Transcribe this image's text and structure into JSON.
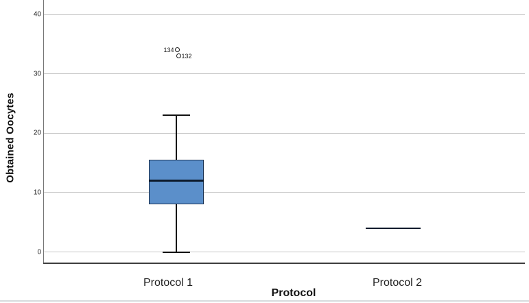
{
  "chart_data": {
    "type": "boxplot",
    "title": "",
    "xlabel": "Protocol",
    "ylabel": "Obtained Oocytes",
    "ylim": [
      0,
      40
    ],
    "yticks": [
      0,
      10,
      20,
      30,
      40
    ],
    "categories": [
      "Protocol 1",
      "Protocol 2"
    ],
    "grid": "horizontal-only",
    "series": [
      {
        "category": "Protocol 1",
        "min": 0,
        "q1": 8,
        "median": 12,
        "q3": 15.5,
        "max": 23,
        "outliers": [
          {
            "label": "134",
            "value": 34,
            "label_side": "left"
          },
          {
            "label": "132",
            "value": 33,
            "label_side": "right"
          }
        ]
      },
      {
        "category": "Protocol 2",
        "min": 4,
        "q1": 4,
        "median": 4,
        "q3": 4,
        "max": 4,
        "outliers": []
      }
    ],
    "colors": {
      "box_fill": "#5b8fca",
      "box_border": "#1a3150",
      "median": "#0c1a2b",
      "whisker": "#111111",
      "gridline": "#c6c6c6",
      "axis": "#3d3d3d",
      "background": "#ffffff"
    }
  }
}
